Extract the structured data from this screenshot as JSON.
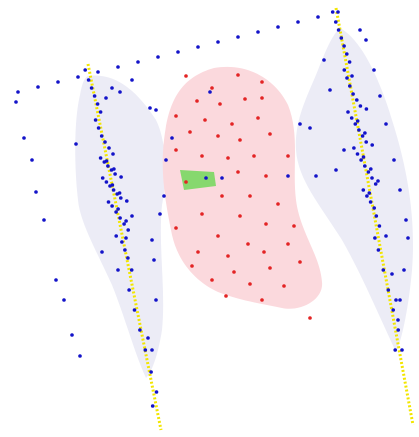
{
  "colors": {
    "background": "#ffffff",
    "side_region_fill": "#ececf6",
    "center_region_fill": "#fbd9dd",
    "marker_fill": "#86d86e",
    "left_line": "#f2e600",
    "right_line": "#f2e600",
    "blue_points": "#1313c9",
    "red_points": "#e32424"
  },
  "icons": {
    "selection_marker": "green-quadrilateral-marker-icon"
  }
}
